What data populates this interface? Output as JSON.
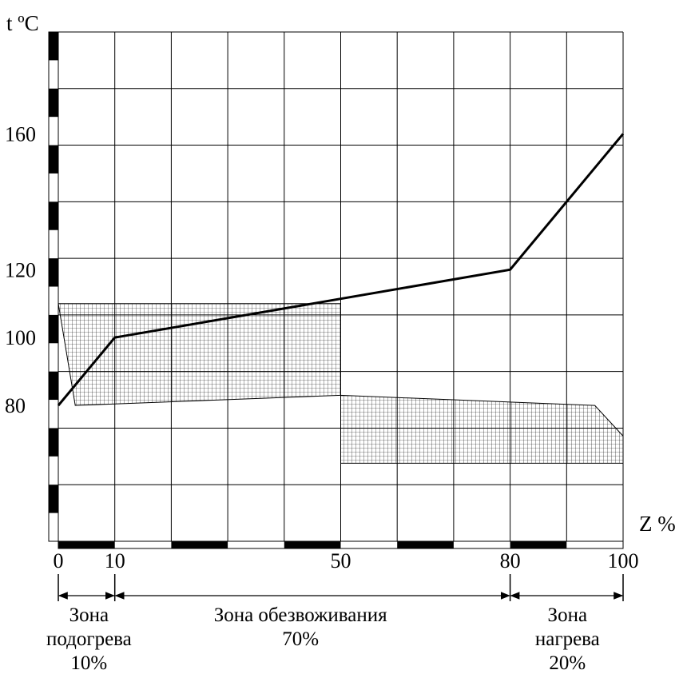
{
  "chart_data": {
    "type": "line",
    "ylabel": "t ºC",
    "xlabel": "Z %",
    "xlim": [
      0,
      100
    ],
    "ylim": [
      40,
      190
    ],
    "x_ticks": [
      0,
      10,
      50,
      80,
      100
    ],
    "y_ticks": [
      80,
      100,
      120,
      160
    ],
    "grid": true,
    "series": [
      {
        "x": [
          0,
          10,
          80,
          100
        ],
        "y": [
          80,
          100,
          120,
          160
        ]
      }
    ],
    "hatched_bands": [
      {
        "x": [
          0,
          0,
          3,
          50,
          50
        ],
        "y": [
          110,
          110,
          80,
          83,
          110
        ]
      },
      {
        "x": [
          50,
          50,
          95,
          100,
          100
        ],
        "y": [
          63,
          83,
          80,
          71,
          63
        ]
      }
    ],
    "zones": [
      {
        "from": 0,
        "to": 10,
        "label": "Зона подогрева",
        "percent": "10%"
      },
      {
        "from": 10,
        "to": 80,
        "label": "Зона обезвоживания",
        "percent": "70%"
      },
      {
        "from": 80,
        "to": 100,
        "label": "Зона нагрева",
        "percent": "20%"
      }
    ]
  }
}
